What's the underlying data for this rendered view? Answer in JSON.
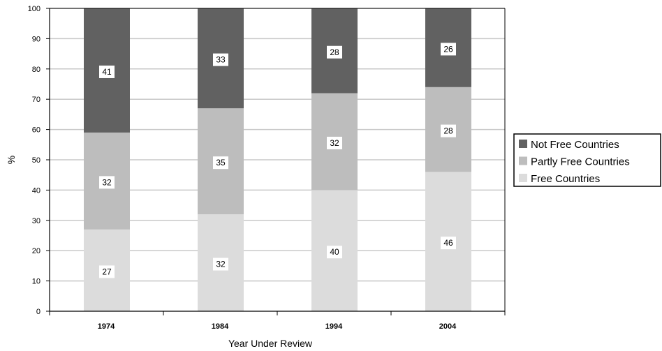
{
  "chart_data": {
    "type": "bar",
    "stacked": true,
    "categories": [
      "1974",
      "1984",
      "1994",
      "2004"
    ],
    "series": [
      {
        "name": "Free Countries",
        "values": [
          27,
          32,
          40,
          46
        ],
        "color": "#dcdcdc"
      },
      {
        "name": "Partly Free Countries",
        "values": [
          32,
          35,
          32,
          28
        ],
        "color": "#bdbdbd"
      },
      {
        "name": "Not Free Countries",
        "values": [
          41,
          33,
          28,
          26
        ],
        "color": "#616161"
      }
    ],
    "xlabel": "Year Under Review",
    "ylabel": "%",
    "ylim": [
      0,
      100
    ],
    "yticks": [
      "0",
      "10",
      "20",
      "30",
      "40",
      "50",
      "60",
      "70",
      "80",
      "90",
      "100"
    ],
    "grid": true,
    "legend_position": "right",
    "legend_order": [
      "Not Free Countries",
      "Partly Free Countries",
      "Free Countries"
    ]
  }
}
